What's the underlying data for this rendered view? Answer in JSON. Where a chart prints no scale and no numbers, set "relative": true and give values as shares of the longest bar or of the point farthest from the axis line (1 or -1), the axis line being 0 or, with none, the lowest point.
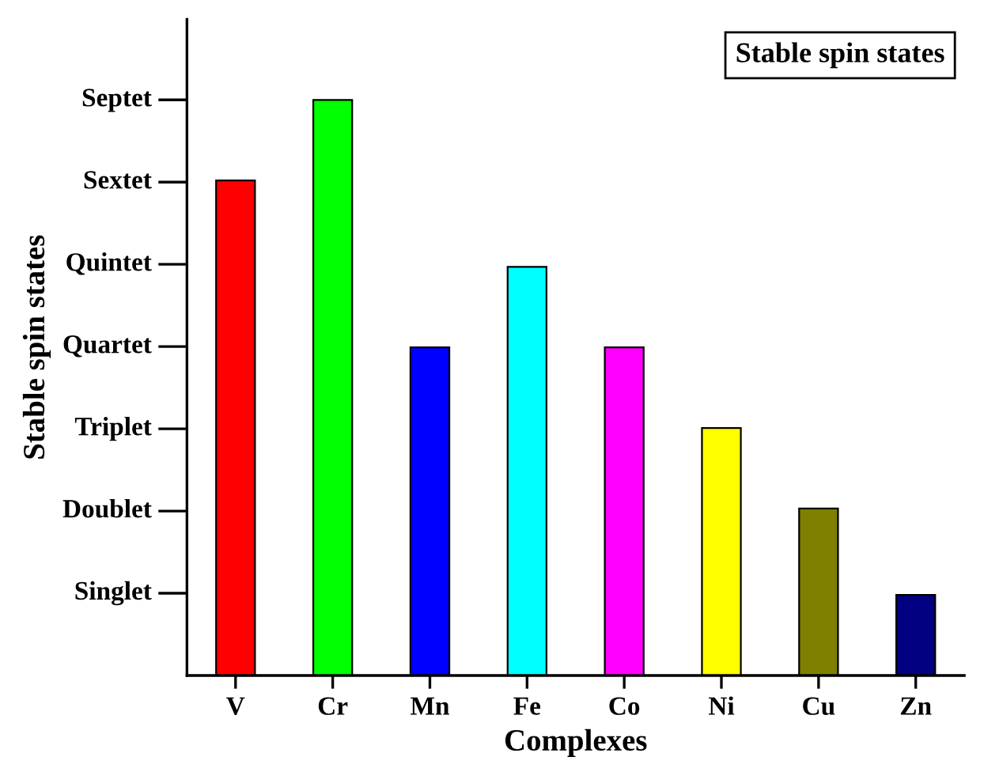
{
  "chart_data": {
    "type": "bar",
    "xlabel": "Complexes",
    "ylabel": "Stable spin states",
    "relative": true,
    "categories": [
      "V",
      "Cr",
      "Mn",
      "Fe",
      "Co",
      "Ni",
      "Cu",
      "Zn"
    ],
    "values": [
      0.86,
      1,
      0.57,
      0.71,
      0.57,
      0.43,
      0.29,
      0.14
    ],
    "colors": [
      "#ff0000",
      "#00ff00",
      "#0000ff",
      "#00ffff",
      "#ff00ff",
      "#ffff00",
      "#808000",
      "#000080"
    ],
    "annotations": [
      "Singlet",
      "Doublet",
      "Triplet",
      "Quartet",
      "Quintet",
      "Sextet",
      "Septet",
      "Stable spin states"
    ]
  }
}
